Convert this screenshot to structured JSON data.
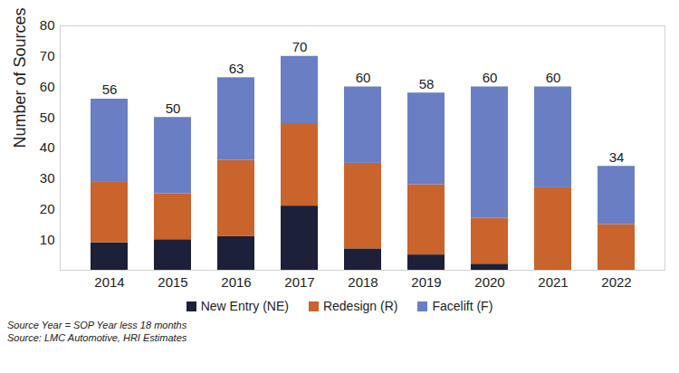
{
  "chart_data": {
    "type": "bar",
    "stacked": true,
    "y_label": "Number of Sources",
    "categories": [
      "2014",
      "2015",
      "2016",
      "2017",
      "2018",
      "2019",
      "2020",
      "2021",
      "2022"
    ],
    "series": [
      {
        "name": "New Entry (NE)",
        "color": "#1c2039",
        "values": [
          9,
          10,
          11,
          21,
          7,
          5,
          2,
          0,
          0
        ]
      },
      {
        "name": "Redesign (R)",
        "color": "#c8642c",
        "values": [
          20,
          15,
          25,
          27,
          28,
          23,
          15,
          27,
          15
        ]
      },
      {
        "name": "Facelift (F)",
        "color": "#6a7ec3",
        "values": [
          27,
          25,
          27,
          22,
          25,
          30,
          43,
          33,
          19
        ]
      }
    ],
    "totals": [
      56,
      50,
      63,
      70,
      60,
      58,
      60,
      60,
      34
    ],
    "ylim": [
      0,
      80
    ],
    "yticks": [
      10,
      20,
      30,
      40,
      50,
      60,
      70,
      80
    ],
    "grid": false,
    "legend": "bottom",
    "caption": [
      "Source Year = SOP Year less 18 months",
      "Source: LMC Automotive, HRI Estimates"
    ]
  }
}
